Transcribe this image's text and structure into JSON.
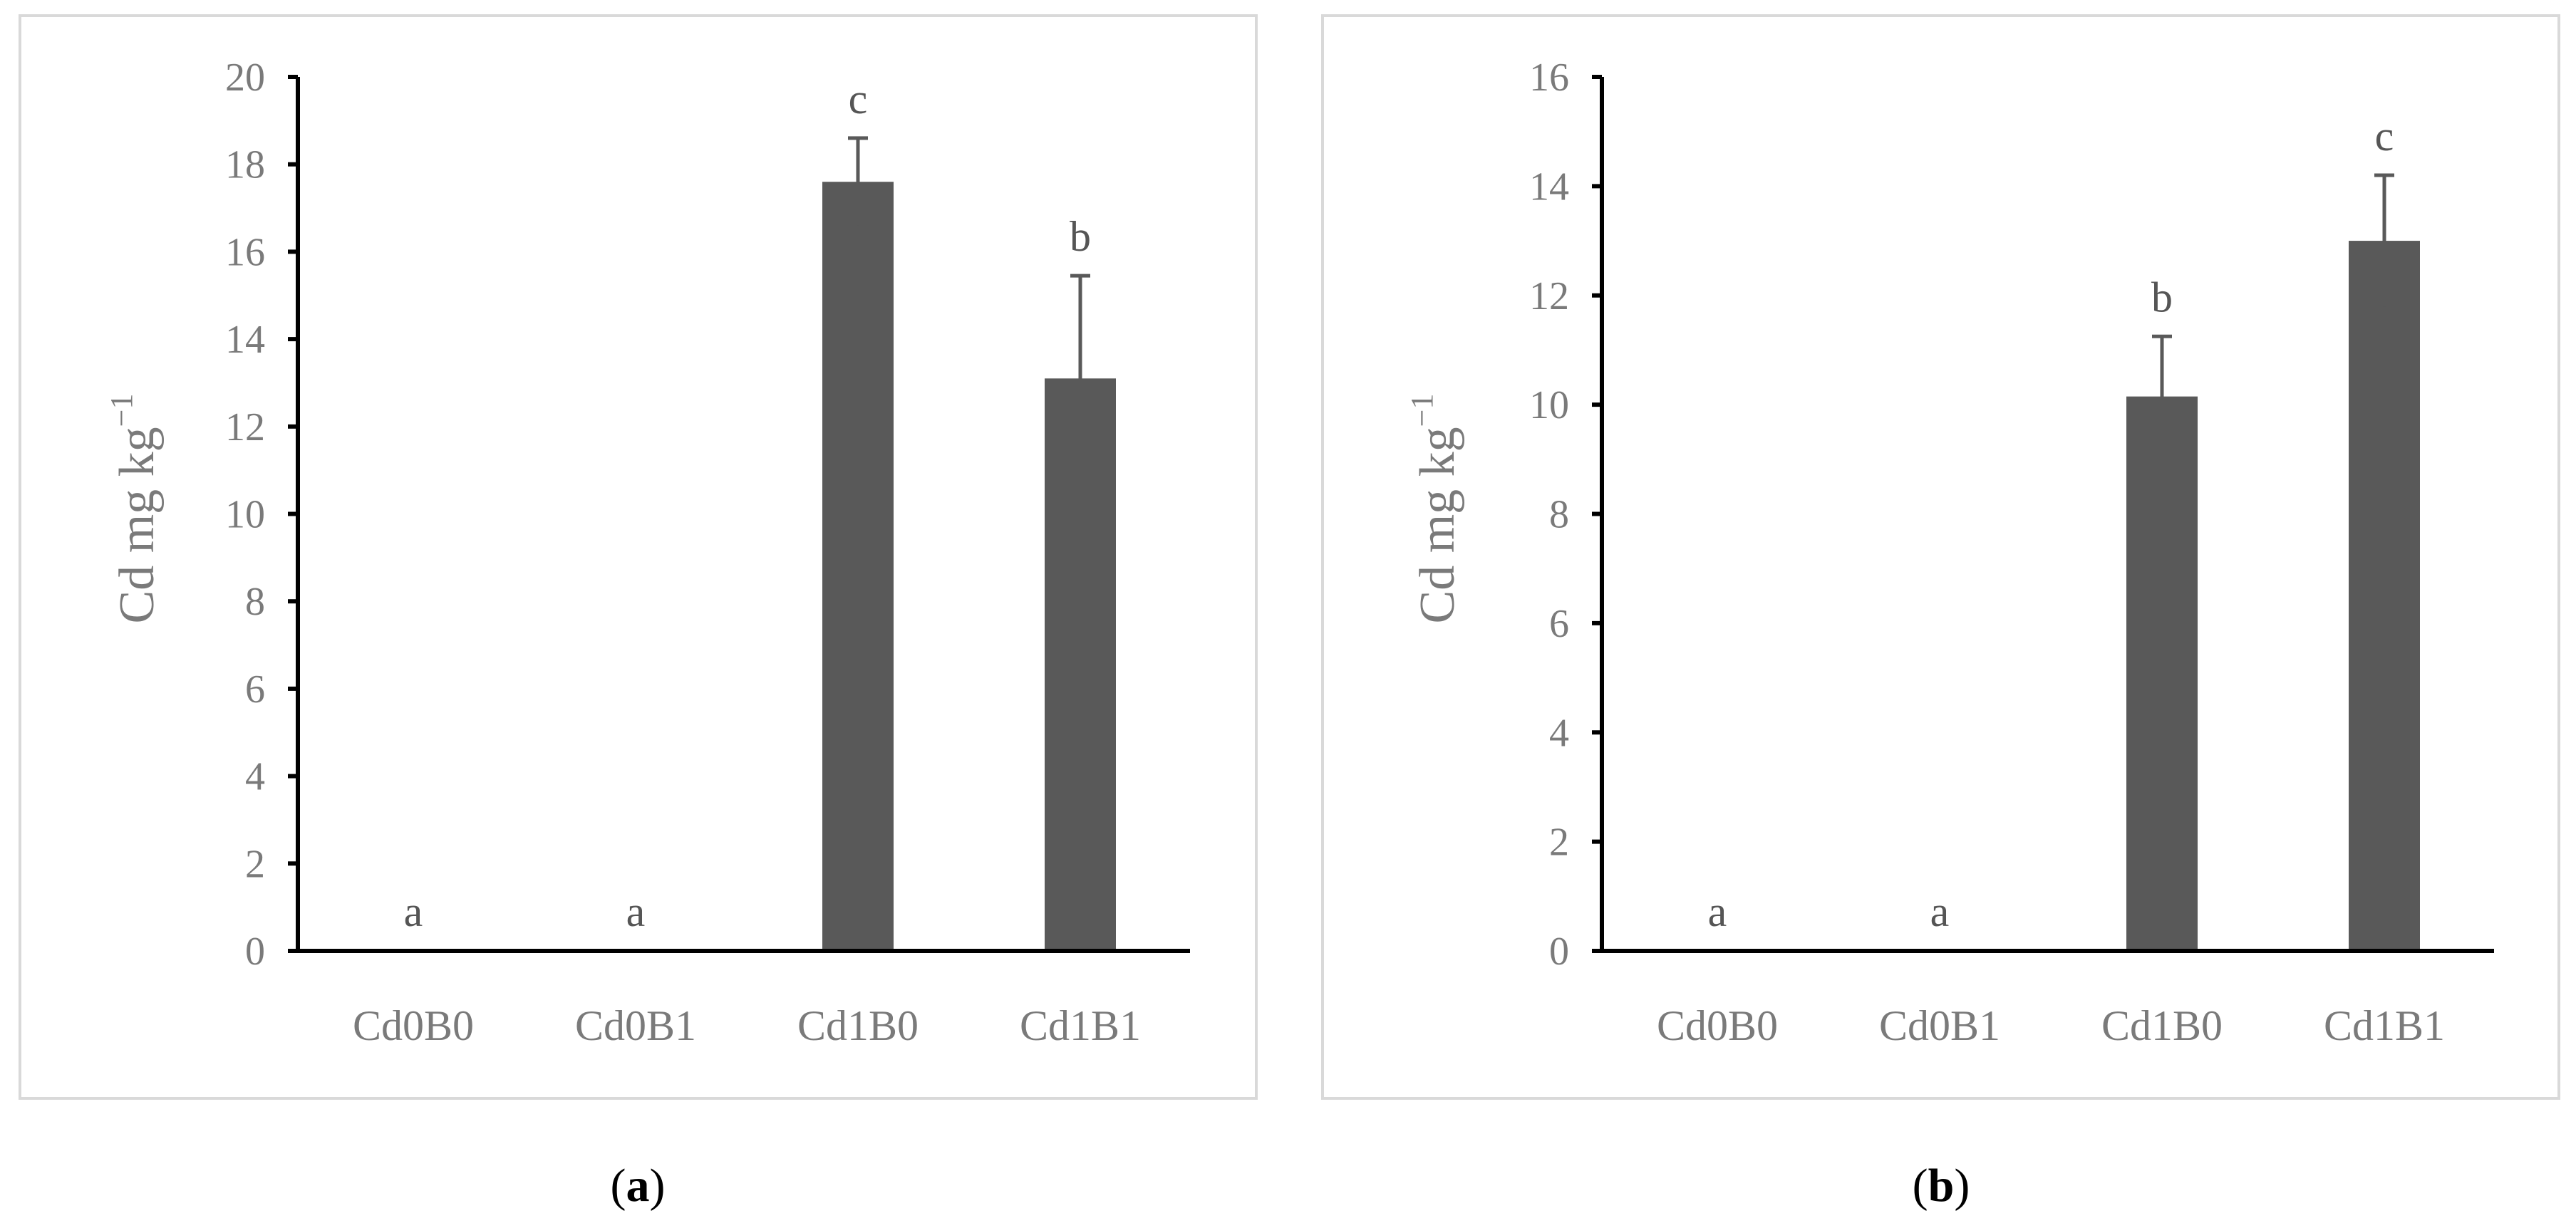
{
  "chart_data": [
    {
      "type": "bar",
      "panel": "a",
      "caption": "(a)",
      "caption_letter": "a",
      "ylabel": "Cd mg kg",
      "ylabel_sup": "−1",
      "ylim": [
        0,
        20
      ],
      "yticks": [
        "0",
        "2",
        "4",
        "6",
        "8",
        "10",
        "12",
        "14",
        "16",
        "18",
        "20"
      ],
      "categories": [
        "Cd0B0",
        "Cd0B1",
        "Cd1B0",
        "Cd1B1"
      ],
      "values": [
        0,
        0,
        17.6,
        13.1
      ],
      "errors": [
        0,
        0,
        1.0,
        2.35
      ],
      "letters": [
        "a",
        "a",
        "c",
        "b"
      ],
      "grid": false,
      "bar_color": "#595959"
    },
    {
      "type": "bar",
      "panel": "b",
      "caption": "(b)",
      "caption_letter": "b",
      "ylabel": "Cd mg kg",
      "ylabel_sup": "−1",
      "ylim": [
        0,
        16
      ],
      "yticks": [
        "0",
        "2",
        "4",
        "6",
        "8",
        "10",
        "12",
        "14",
        "16"
      ],
      "categories": [
        "Cd0B0",
        "Cd0B1",
        "Cd1B0",
        "Cd1B1"
      ],
      "values": [
        0,
        0,
        10.15,
        13.0
      ],
      "errors": [
        0,
        0,
        1.1,
        1.2
      ],
      "letters": [
        "a",
        "a",
        "b",
        "c"
      ],
      "grid": false,
      "bar_color": "#595959"
    }
  ]
}
